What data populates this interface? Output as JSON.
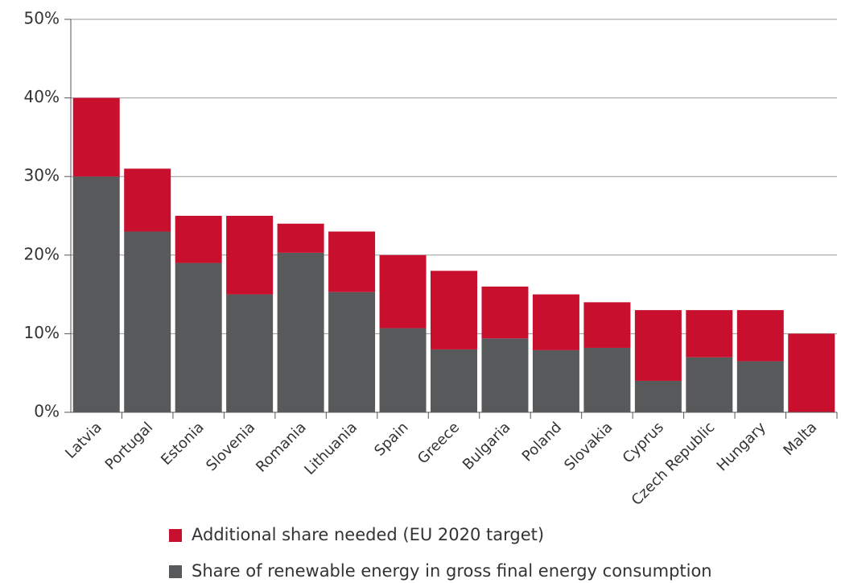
{
  "chart_data": {
    "type": "stacked_bar",
    "categories": [
      "Latvia",
      "Portugal",
      "Estonia",
      "Slovenia",
      "Romania",
      "Lithuania",
      "Spain",
      "Greece",
      "Bulgaria",
      "Poland",
      "Slovakia",
      "Cyprus",
      "Czech Republic",
      "Hungary",
      "Malta"
    ],
    "series": [
      {
        "name": "Share of renewable energy in gross final energy consumption",
        "color": "#58595b",
        "values": [
          30,
          23,
          19,
          15,
          20.3,
          15.3,
          10.7,
          8,
          9.4,
          7.9,
          8.2,
          4,
          7,
          6.5,
          0
        ]
      },
      {
        "name": "Additional share needed (EU 2020 target)",
        "color": "#c8102e",
        "values": [
          10,
          8,
          6,
          10,
          3.7,
          7.7,
          9.3,
          10,
          6.6,
          7.1,
          5.8,
          9,
          6,
          6.5,
          10
        ]
      }
    ],
    "ylim": [
      0,
      50
    ],
    "yticks": [
      {
        "value": 0,
        "label": "0%"
      },
      {
        "value": 10,
        "label": "10%"
      },
      {
        "value": 20,
        "label": "20%"
      },
      {
        "value": 30,
        "label": "30%"
      },
      {
        "value": 40,
        "label": "40%"
      },
      {
        "value": 50,
        "label": "50%"
      }
    ],
    "grid": true
  }
}
